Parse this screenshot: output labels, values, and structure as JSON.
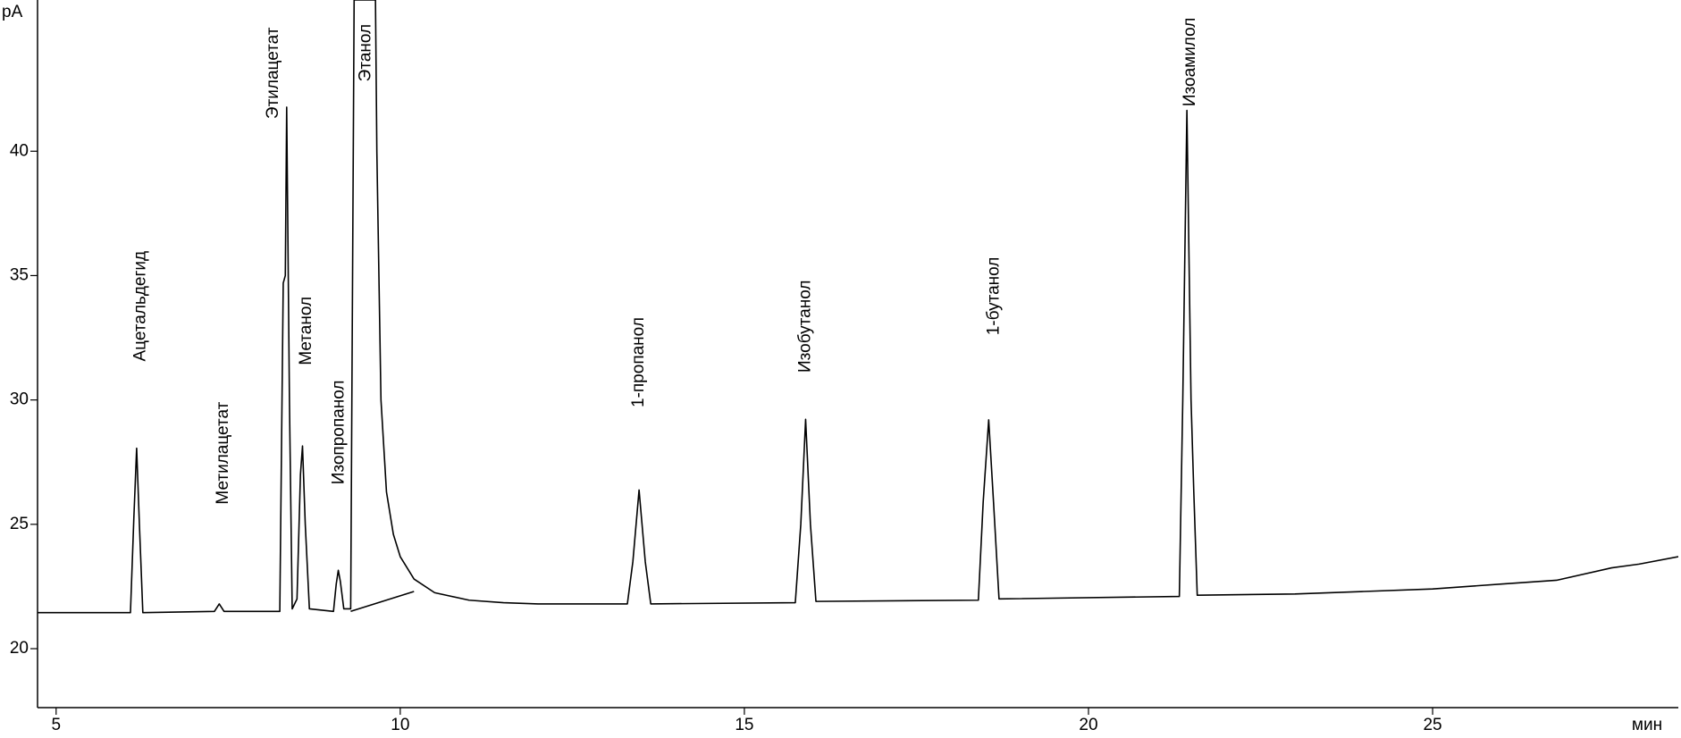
{
  "chart_data": {
    "type": "line",
    "ylabel": "pA",
    "xlabel": "мин",
    "xlim": [
      4.73,
      28.57
    ],
    "xticks": [
      5,
      10,
      15,
      20,
      25
    ],
    "ylim": [
      17.63,
      46.08
    ],
    "yticks": [
      20,
      25,
      30,
      35,
      40
    ],
    "grid": false,
    "series": [
      {
        "color": "#000000",
        "x": [
          4.73,
          6.08,
          6.13,
          6.17,
          6.21,
          6.26,
          7.3,
          7.37,
          7.44,
          8.25,
          8.3,
          8.33,
          8.35,
          8.39,
          8.43,
          8.5,
          8.55,
          8.58,
          8.62,
          8.68,
          9.03,
          9.07,
          9.1,
          9.13,
          9.18,
          9.28,
          9.33,
          9.64,
          9.66,
          9.72,
          9.8,
          9.9,
          10.0,
          10.2,
          10.5,
          11.0,
          11.5,
          12,
          13.3,
          13.38,
          13.47,
          13.56,
          13.64,
          15.74,
          15.82,
          15.89,
          15.96,
          16.04,
          18.4,
          18.47,
          18.55,
          18.62,
          18.7,
          21.32,
          21.37,
          21.43,
          21.49,
          21.53,
          21.58,
          23,
          24,
          25,
          26,
          26.8,
          27.6,
          28,
          28.57
        ],
        "values": [
          21.45,
          21.45,
          25.3,
          28.06,
          25,
          21.45,
          21.5,
          21.8,
          21.5,
          21.5,
          34.7,
          35,
          41.77,
          30,
          21.6,
          22,
          27,
          28.15,
          25,
          21.6,
          21.5,
          22.6,
          23.15,
          22.7,
          21.6,
          21.6,
          46.08,
          46.08,
          40,
          30,
          26.3,
          24.6,
          23.7,
          22.8,
          22.25,
          21.95,
          21.85,
          21.8,
          21.8,
          23.5,
          26.38,
          23.5,
          21.8,
          21.85,
          25,
          29.22,
          25,
          21.9,
          21.95,
          25.9,
          29.2,
          25.9,
          22,
          22.1,
          30,
          41.64,
          30,
          26.3,
          22.15,
          22.2,
          22.3,
          22.4,
          22.6,
          22.75,
          23.25,
          23.4,
          23.7
        ]
      },
      {
        "color": "#000000",
        "x": [
          9.28,
          10.2
        ],
        "values": [
          21.5,
          22.3
        ]
      }
    ],
    "annotations": [
      {
        "text": "Ацетальдегид",
        "x": 6.23,
        "y": 31.55
      },
      {
        "text": "Метилацетат",
        "x": 7.43,
        "y": 25.8
      },
      {
        "text": "Этилацетат",
        "x": 8.16,
        "y": 41.3
      },
      {
        "text": "Метанол",
        "x": 8.64,
        "y": 31.4
      },
      {
        "text": "Изопропанол",
        "x": 9.11,
        "y": 26.6
      },
      {
        "text": "Этанол",
        "x": 9.5,
        "y": 42.8
      },
      {
        "text": "1-пропанол",
        "x": 13.47,
        "y": 29.7
      },
      {
        "text": "Изобутанол",
        "x": 15.89,
        "y": 31.1
      },
      {
        "text": "1-бутанол",
        "x": 18.63,
        "y": 32.6
      },
      {
        "text": "Изоамилол",
        "x": 21.48,
        "y": 41.8
      }
    ]
  }
}
